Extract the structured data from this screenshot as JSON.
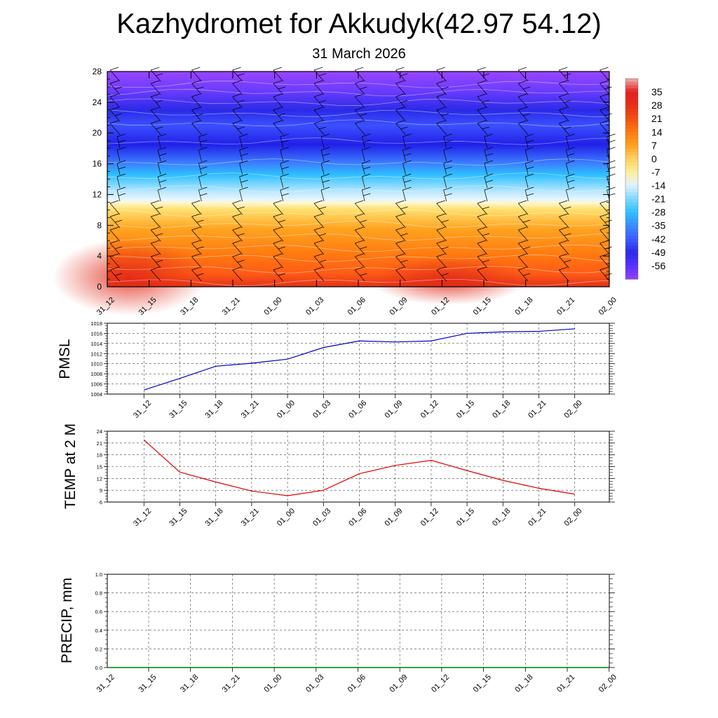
{
  "title": "Kazhydromet for Akkudyk(42.97 54.12)",
  "subtitle": "31 March 2026",
  "chart_data": [
    {
      "type": "heatmap",
      "name": "cross-section",
      "y_ticks": [
        "0",
        "4",
        "8",
        "12",
        "16",
        "20",
        "24",
        "28"
      ],
      "ylim": [
        0,
        28
      ],
      "x_labels": [
        "31_12",
        "31_15",
        "31_18",
        "31_21",
        "01_00",
        "01_03",
        "01_06",
        "01_09",
        "01_12",
        "01_15",
        "01_18",
        "01_21",
        "02_00"
      ],
      "colorbar_labels": [
        "35",
        "28",
        "21",
        "14",
        "7",
        "0",
        "-7",
        "-14",
        "-21",
        "-28",
        "-35",
        "-42",
        "-49",
        "-56"
      ],
      "colorbar_range": [
        -63,
        42
      ],
      "colors": {
        "warm_dark": "#e0321a",
        "warm": "#ff7a10",
        "warm_light": "#ffb030",
        "yellow": "#ffe680",
        "pale": "#fff6cc",
        "sky": "#bde8ff",
        "cyan": "#2ec0ff",
        "blue": "#3c64ff",
        "deep_blue": "#2020e8",
        "violet": "#8c3cff"
      }
    },
    {
      "type": "line",
      "name": "pmsl",
      "ylabel": "PMSL",
      "x_labels": [
        "31_12",
        "31_15",
        "31_18",
        "31_21",
        "01_00",
        "01_03",
        "01_06",
        "01_09",
        "01_12",
        "01_15",
        "01_18",
        "01_21",
        "02_00"
      ],
      "y_ticks": [
        "1004",
        "1006",
        "1008",
        "1010",
        "1012",
        "1014",
        "1016",
        "1018"
      ],
      "ylim": [
        1004,
        1018
      ],
      "values": [
        1004.8,
        1007.1,
        1009.5,
        1010.1,
        1010.9,
        1013.2,
        1014.5,
        1014.3,
        1014.5,
        1016.0,
        1016.3,
        1016.4,
        1016.9
      ],
      "color": "#0000cc"
    },
    {
      "type": "line",
      "name": "temp",
      "ylabel": "TEMP at 2 M",
      "x_labels": [
        "31_12",
        "31_15",
        "31_18",
        "31_21",
        "01_00",
        "01_03",
        "01_06",
        "01_09",
        "01_12",
        "01_15",
        "01_18",
        "01_21",
        "02_00"
      ],
      "y_ticks": [
        "6",
        "9",
        "12",
        "15",
        "18",
        "21",
        "24"
      ],
      "ylim": [
        6,
        24
      ],
      "values": [
        21.8,
        13.6,
        11.1,
        8.8,
        7.6,
        9.0,
        13.2,
        15.3,
        16.6,
        14.0,
        11.5,
        9.5,
        8.0
      ],
      "color": "#e00000"
    },
    {
      "type": "line",
      "name": "precip",
      "ylabel": "PRECIP, mm",
      "x_labels": [
        "31_12",
        "31_15",
        "31_18",
        "31_21",
        "01_00",
        "01_03",
        "01_06",
        "01_09",
        "01_12",
        "01_15",
        "01_18",
        "01_21",
        "02_00"
      ],
      "y_ticks": [
        "0.0",
        "0.2",
        "0.4",
        "0.6",
        "0.8",
        "1.0"
      ],
      "ylim": [
        0,
        1
      ],
      "values": [
        0,
        0,
        0,
        0,
        0,
        0,
        0,
        0,
        0,
        0,
        0,
        0
      ],
      "color": "#008000"
    }
  ]
}
